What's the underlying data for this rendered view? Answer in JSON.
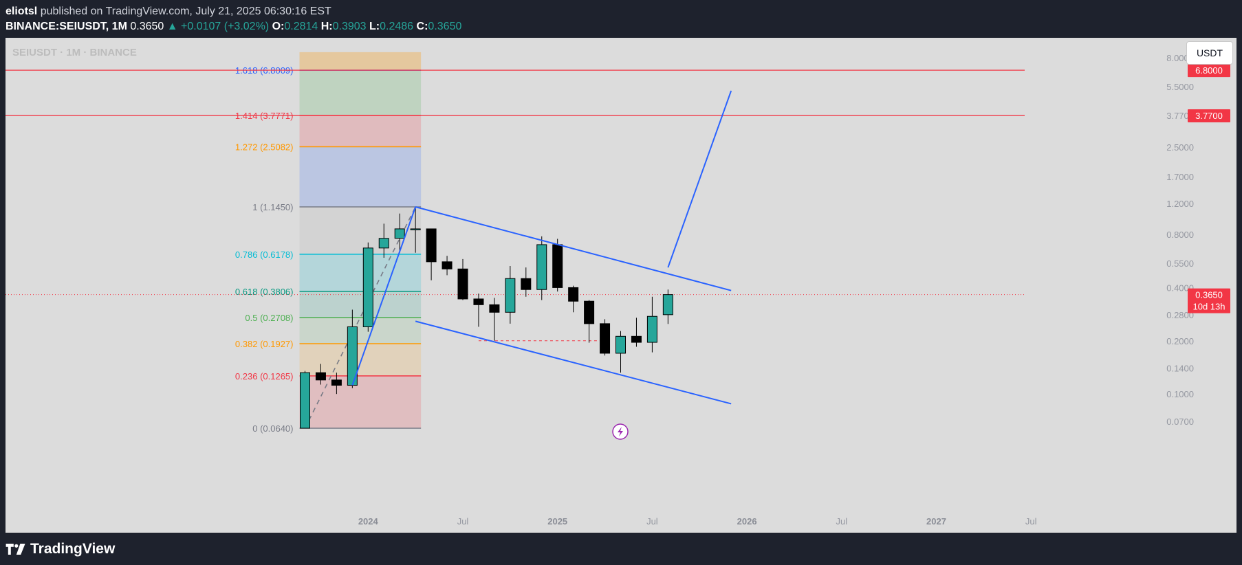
{
  "header": {
    "author": "eliotsl",
    "published_text": "published on TradingView.com, July 21, 2025 06:30:16 EST",
    "symbol": "BINANCE:SEIUSDT, 1M",
    "price": "0.3650",
    "change": "▲ +0.0107 (+3.02%)",
    "o_label": "O:",
    "o_value": "0.2814",
    "h_label": "H:",
    "h_value": "0.3903",
    "l_label": "L:",
    "l_value": "0.2486",
    "c_label": "C:",
    "c_value": "0.3650"
  },
  "watermark": "SEIUSDT · 1M · BINANCE",
  "currency_button": "USDT",
  "footer": {
    "brand": "TradingView"
  },
  "colors": {
    "up": "#26a69a",
    "down": "#000000",
    "trend_line": "#2962ff",
    "horizontal_line": "#f23645",
    "plot_bg": "#dcdcdc"
  },
  "chart_data": {
    "type": "candlestick",
    "title": "SEIUSDT · 1M · BINANCE",
    "y_scale": "log",
    "y_ticks": [
      "0.0700",
      "0.1000",
      "0.1400",
      "0.2000",
      "0.2800",
      "0.4000",
      "0.5500",
      "0.8000",
      "1.2000",
      "1.7000",
      "2.5000",
      "3.7700",
      "5.5000",
      "8.0000"
    ],
    "x_ticks": [
      "2024",
      "Jul",
      "2025",
      "Jul",
      "2026",
      "Jul",
      "2027",
      "Jul"
    ],
    "candles": [
      {
        "date": "2023-09",
        "o": 0.064,
        "h": 0.135,
        "l": 0.064,
        "c": 0.132
      },
      {
        "date": "2023-10",
        "o": 0.132,
        "h": 0.148,
        "l": 0.113,
        "c": 0.12
      },
      {
        "date": "2023-11",
        "o": 0.12,
        "h": 0.132,
        "l": 0.1,
        "c": 0.112
      },
      {
        "date": "2023-12",
        "o": 0.112,
        "h": 0.3,
        "l": 0.108,
        "c": 0.24
      },
      {
        "date": "2024-01",
        "o": 0.24,
        "h": 0.72,
        "l": 0.225,
        "c": 0.67
      },
      {
        "date": "2024-02",
        "o": 0.67,
        "h": 0.92,
        "l": 0.59,
        "c": 0.76
      },
      {
        "date": "2024-03",
        "o": 0.76,
        "h": 1.05,
        "l": 0.63,
        "c": 0.86
      },
      {
        "date": "2024-04",
        "o": 0.86,
        "h": 1.145,
        "l": 0.63,
        "c": 0.86
      },
      {
        "date": "2024-05",
        "o": 0.86,
        "h": 0.86,
        "l": 0.44,
        "c": 0.56
      },
      {
        "date": "2024-06",
        "o": 0.56,
        "h": 0.605,
        "l": 0.47,
        "c": 0.51
      },
      {
        "date": "2024-07",
        "o": 0.51,
        "h": 0.58,
        "l": 0.34,
        "c": 0.345
      },
      {
        "date": "2024-08",
        "o": 0.345,
        "h": 0.37,
        "l": 0.24,
        "c": 0.32
      },
      {
        "date": "2024-09",
        "o": 0.32,
        "h": 0.35,
        "l": 0.2,
        "c": 0.29
      },
      {
        "date": "2024-10",
        "o": 0.29,
        "h": 0.53,
        "l": 0.25,
        "c": 0.45
      },
      {
        "date": "2024-11",
        "o": 0.45,
        "h": 0.52,
        "l": 0.355,
        "c": 0.39
      },
      {
        "date": "2024-12",
        "o": 0.39,
        "h": 0.78,
        "l": 0.34,
        "c": 0.7
      },
      {
        "date": "2025-01",
        "o": 0.7,
        "h": 0.755,
        "l": 0.38,
        "c": 0.4
      },
      {
        "date": "2025-02",
        "o": 0.4,
        "h": 0.41,
        "l": 0.29,
        "c": 0.335
      },
      {
        "date": "2025-03",
        "o": 0.335,
        "h": 0.34,
        "l": 0.195,
        "c": 0.25
      },
      {
        "date": "2025-04",
        "o": 0.25,
        "h": 0.265,
        "l": 0.165,
        "c": 0.17
      },
      {
        "date": "2025-05",
        "o": 0.17,
        "h": 0.227,
        "l": 0.132,
        "c": 0.212
      },
      {
        "date": "2025-06",
        "o": 0.212,
        "h": 0.27,
        "l": 0.185,
        "c": 0.196
      },
      {
        "date": "2025-07",
        "o": 0.196,
        "h": 0.355,
        "l": 0.172,
        "c": 0.275
      },
      {
        "date": "2025-08",
        "o": 0.281,
        "h": 0.39,
        "l": 0.249,
        "c": 0.365
      }
    ],
    "fib_levels": [
      {
        "label": "0 (0.0640)",
        "value": 0.064,
        "color": "#787b86"
      },
      {
        "label": "0.236 (0.1265)",
        "value": 0.1265,
        "color": "#f23645"
      },
      {
        "label": "0.382 (0.1927)",
        "value": 0.1927,
        "color": "#ff9800"
      },
      {
        "label": "0.5 (0.2708)",
        "value": 0.2708,
        "color": "#4caf50"
      },
      {
        "label": "0.618 (0.3806)",
        "value": 0.3806,
        "color": "#089981"
      },
      {
        "label": "0.786 (0.6178)",
        "value": 0.6178,
        "color": "#00bcd4"
      },
      {
        "label": "1 (1.1450)",
        "value": 1.145,
        "color": "#787b86"
      },
      {
        "label": "1.272 (2.5082)",
        "value": 2.5082,
        "color": "#ff9800"
      },
      {
        "label": "1.414 (3.7771)",
        "value": 3.7771,
        "color": "#f23645"
      },
      {
        "label": "1.618 (6.8009)",
        "value": 6.8009,
        "color": "#2962ff"
      }
    ],
    "fib_zones": [
      {
        "from": 0.064,
        "to": 0.1265,
        "color": "#f23645",
        "opacity": 0.18
      },
      {
        "from": 0.1265,
        "to": 0.1927,
        "color": "#ff9800",
        "opacity": 0.15
      },
      {
        "from": 0.1927,
        "to": 0.2708,
        "color": "#4caf50",
        "opacity": 0.12
      },
      {
        "from": 0.2708,
        "to": 0.3806,
        "color": "#089981",
        "opacity": 0.15
      },
      {
        "from": 0.3806,
        "to": 0.6178,
        "color": "#00bcd4",
        "opacity": 0.18
      },
      {
        "from": 0.6178,
        "to": 1.145,
        "color": "#9e9e9e",
        "opacity": 0.15
      },
      {
        "from": 1.145,
        "to": 2.5082,
        "color": "#2962ff",
        "opacity": 0.18
      },
      {
        "from": 2.5082,
        "to": 3.7771,
        "color": "#f23645",
        "opacity": 0.2
      },
      {
        "from": 3.7771,
        "to": 6.8009,
        "color": "#4caf50",
        "opacity": 0.2
      },
      {
        "from": 6.8009,
        "to": 8.6,
        "color": "#ff9800",
        "opacity": 0.28
      }
    ],
    "fib_range": {
      "start": "2023-09",
      "end": "2024-04"
    },
    "channel": {
      "upper": [
        {
          "date": "2024-04",
          "price": 1.145
        },
        {
          "date": "2025-12",
          "price": 0.385
        }
      ],
      "lower": [
        {
          "date": "2024-04",
          "price": 0.258
        },
        {
          "date": "2025-12",
          "price": 0.088
        }
      ]
    },
    "projection": [
      {
        "date": "2025-08",
        "price": 0.52
      },
      {
        "date": "2025-12",
        "price": 5.2
      }
    ],
    "impulse_line": [
      {
        "date": "2023-12",
        "price": 0.112
      },
      {
        "date": "2024-04",
        "price": 1.145
      }
    ],
    "fib_trend_line": [
      {
        "date": "2023-09",
        "price": 0.064
      },
      {
        "date": "2024-04",
        "price": 1.145
      }
    ],
    "low_marker": {
      "price": 0.2,
      "from": "2024-08",
      "to": "2025-04"
    },
    "horizontal_lines": [
      {
        "price": 6.8,
        "label": "6.8000"
      },
      {
        "price": 3.77,
        "label": "3.7700"
      }
    ],
    "last_price": {
      "price": 0.365,
      "label": "0.3650",
      "countdown": "10d 13h"
    }
  }
}
